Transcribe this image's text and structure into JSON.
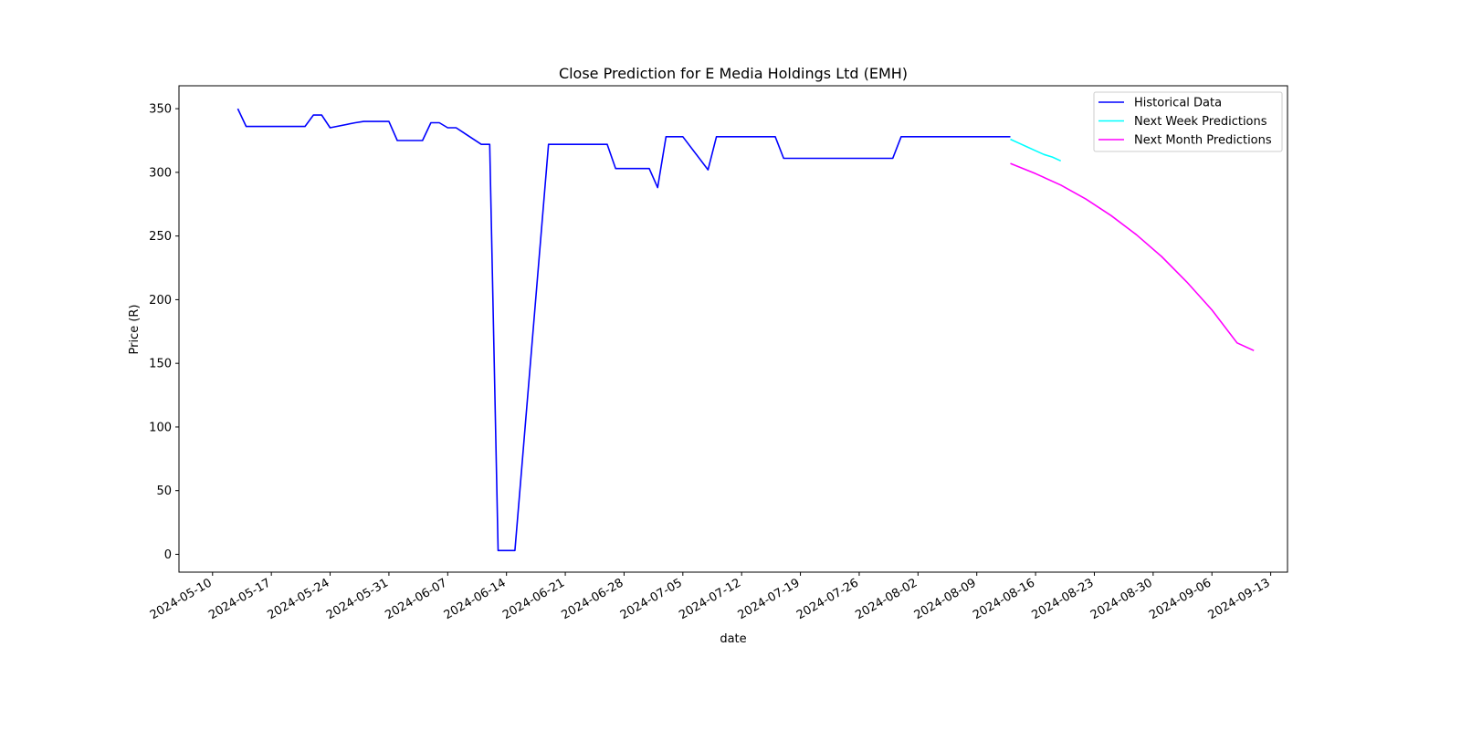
{
  "chart_data": {
    "type": "line",
    "title": "Close Prediction for E Media Holdings Ltd (EMH)",
    "xlabel": "date",
    "ylabel": "Price (R)",
    "xlim": [
      "2024-05-06",
      "2024-09-15"
    ],
    "ylim": [
      -14,
      368
    ],
    "x_ticks": [
      "2024-05-10",
      "2024-05-17",
      "2024-05-24",
      "2024-05-31",
      "2024-06-07",
      "2024-06-14",
      "2024-06-21",
      "2024-06-28",
      "2024-07-05",
      "2024-07-12",
      "2024-07-19",
      "2024-07-26",
      "2024-08-02",
      "2024-08-09",
      "2024-08-16",
      "2024-08-23",
      "2024-08-30",
      "2024-09-06",
      "2024-09-13"
    ],
    "y_ticks": [
      0,
      50,
      100,
      150,
      200,
      250,
      300,
      350
    ],
    "grid": false,
    "legend_position": "top-right",
    "series": [
      {
        "name": "Historical Data",
        "color": "#0000ff",
        "points": [
          [
            "2024-05-13",
            350
          ],
          [
            "2024-05-14",
            336
          ],
          [
            "2024-05-15",
            336
          ],
          [
            "2024-05-16",
            336
          ],
          [
            "2024-05-17",
            336
          ],
          [
            "2024-05-20",
            336
          ],
          [
            "2024-05-21",
            336
          ],
          [
            "2024-05-22",
            345
          ],
          [
            "2024-05-23",
            345
          ],
          [
            "2024-05-24",
            335
          ],
          [
            "2024-05-27",
            339
          ],
          [
            "2024-05-28",
            340
          ],
          [
            "2024-05-29",
            340
          ],
          [
            "2024-05-30",
            340
          ],
          [
            "2024-05-31",
            340
          ],
          [
            "2024-06-01",
            325
          ],
          [
            "2024-06-02",
            325
          ],
          [
            "2024-06-03",
            325
          ],
          [
            "2024-06-04",
            325
          ],
          [
            "2024-06-05",
            339
          ],
          [
            "2024-06-06",
            339
          ],
          [
            "2024-06-07",
            335
          ],
          [
            "2024-06-08",
            335
          ],
          [
            "2024-06-11",
            322
          ],
          [
            "2024-06-12",
            322
          ],
          [
            "2024-06-13",
            3
          ],
          [
            "2024-06-14",
            3
          ],
          [
            "2024-06-15",
            3
          ],
          [
            "2024-06-19",
            322
          ],
          [
            "2024-06-20",
            322
          ],
          [
            "2024-06-21",
            322
          ],
          [
            "2024-06-24",
            322
          ],
          [
            "2024-06-25",
            322
          ],
          [
            "2024-06-26",
            322
          ],
          [
            "2024-06-27",
            303
          ],
          [
            "2024-06-28",
            303
          ],
          [
            "2024-07-01",
            303
          ],
          [
            "2024-07-02",
            288
          ],
          [
            "2024-07-03",
            328
          ],
          [
            "2024-07-04",
            328
          ],
          [
            "2024-07-05",
            328
          ],
          [
            "2024-07-08",
            302
          ],
          [
            "2024-07-09",
            328
          ],
          [
            "2024-07-10",
            328
          ],
          [
            "2024-07-11",
            328
          ],
          [
            "2024-07-12",
            328
          ],
          [
            "2024-07-15",
            328
          ],
          [
            "2024-07-16",
            328
          ],
          [
            "2024-07-17",
            311
          ],
          [
            "2024-07-18",
            311
          ],
          [
            "2024-07-19",
            311
          ],
          [
            "2024-07-22",
            311
          ],
          [
            "2024-07-25",
            311
          ],
          [
            "2024-07-26",
            311
          ],
          [
            "2024-07-29",
            311
          ],
          [
            "2024-07-30",
            311
          ],
          [
            "2024-07-31",
            328
          ],
          [
            "2024-08-01",
            328
          ],
          [
            "2024-08-02",
            328
          ],
          [
            "2024-08-05",
            328
          ],
          [
            "2024-08-08",
            328
          ],
          [
            "2024-08-09",
            328
          ],
          [
            "2024-08-12",
            328
          ],
          [
            "2024-08-13",
            328
          ]
        ]
      },
      {
        "name": "Next Week Predictions",
        "color": "#00ffff",
        "points": [
          [
            "2024-08-13",
            326
          ],
          [
            "2024-08-14",
            323
          ],
          [
            "2024-08-15",
            320
          ],
          [
            "2024-08-16",
            317
          ],
          [
            "2024-08-17",
            314
          ],
          [
            "2024-08-18",
            312
          ],
          [
            "2024-08-19",
            309
          ]
        ]
      },
      {
        "name": "Next Month Predictions",
        "color": "#ff00ff",
        "points": [
          [
            "2024-08-13",
            307
          ],
          [
            "2024-08-16",
            299
          ],
          [
            "2024-08-19",
            290
          ],
          [
            "2024-08-22",
            279
          ],
          [
            "2024-08-25",
            266
          ],
          [
            "2024-08-28",
            251
          ],
          [
            "2024-08-31",
            234
          ],
          [
            "2024-09-03",
            214
          ],
          [
            "2024-09-06",
            192
          ],
          [
            "2024-09-09",
            166
          ],
          [
            "2024-09-11",
            160
          ]
        ]
      }
    ]
  }
}
